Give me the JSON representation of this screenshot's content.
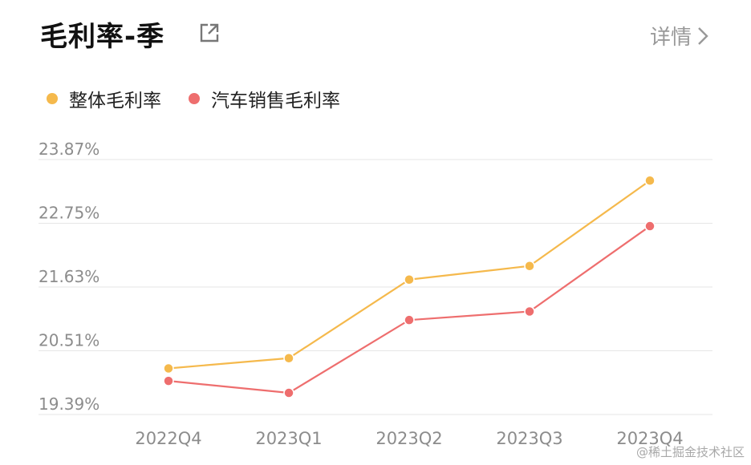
{
  "header": {
    "title": "毛利率-季",
    "detail_label": "详情"
  },
  "icons": {
    "external": "external-link-icon",
    "chevron": "chevron-right-icon"
  },
  "colors": {
    "overall": "#F5B94C",
    "auto": "#EE6E6E",
    "grid": "#E6E6E6",
    "tick_text": "#8C8C8C"
  },
  "legend": [
    {
      "label": "整体毛利率",
      "color": "#F5B94C"
    },
    {
      "label": "汽车销售毛利率",
      "color": "#EE6E6E"
    }
  ],
  "chart_data": {
    "type": "line",
    "title": "毛利率-季",
    "categories": [
      "2022Q4",
      "2023Q1",
      "2023Q2",
      "2023Q3",
      "2023Q4"
    ],
    "y_ticks": [
      "19.39%",
      "20.51%",
      "21.63%",
      "22.75%",
      "23.87%"
    ],
    "ylim": [
      19.39,
      23.87
    ],
    "grid": true,
    "legend_position": "top-left",
    "series": [
      {
        "name": "整体毛利率",
        "color": "#F5B94C",
        "values": [
          20.2,
          20.38,
          21.76,
          22.0,
          23.5
        ]
      },
      {
        "name": "汽车销售毛利率",
        "color": "#EE6E6E",
        "values": [
          19.98,
          19.77,
          21.05,
          21.2,
          22.7
        ]
      }
    ]
  },
  "watermark": "@稀土掘金技术社区"
}
